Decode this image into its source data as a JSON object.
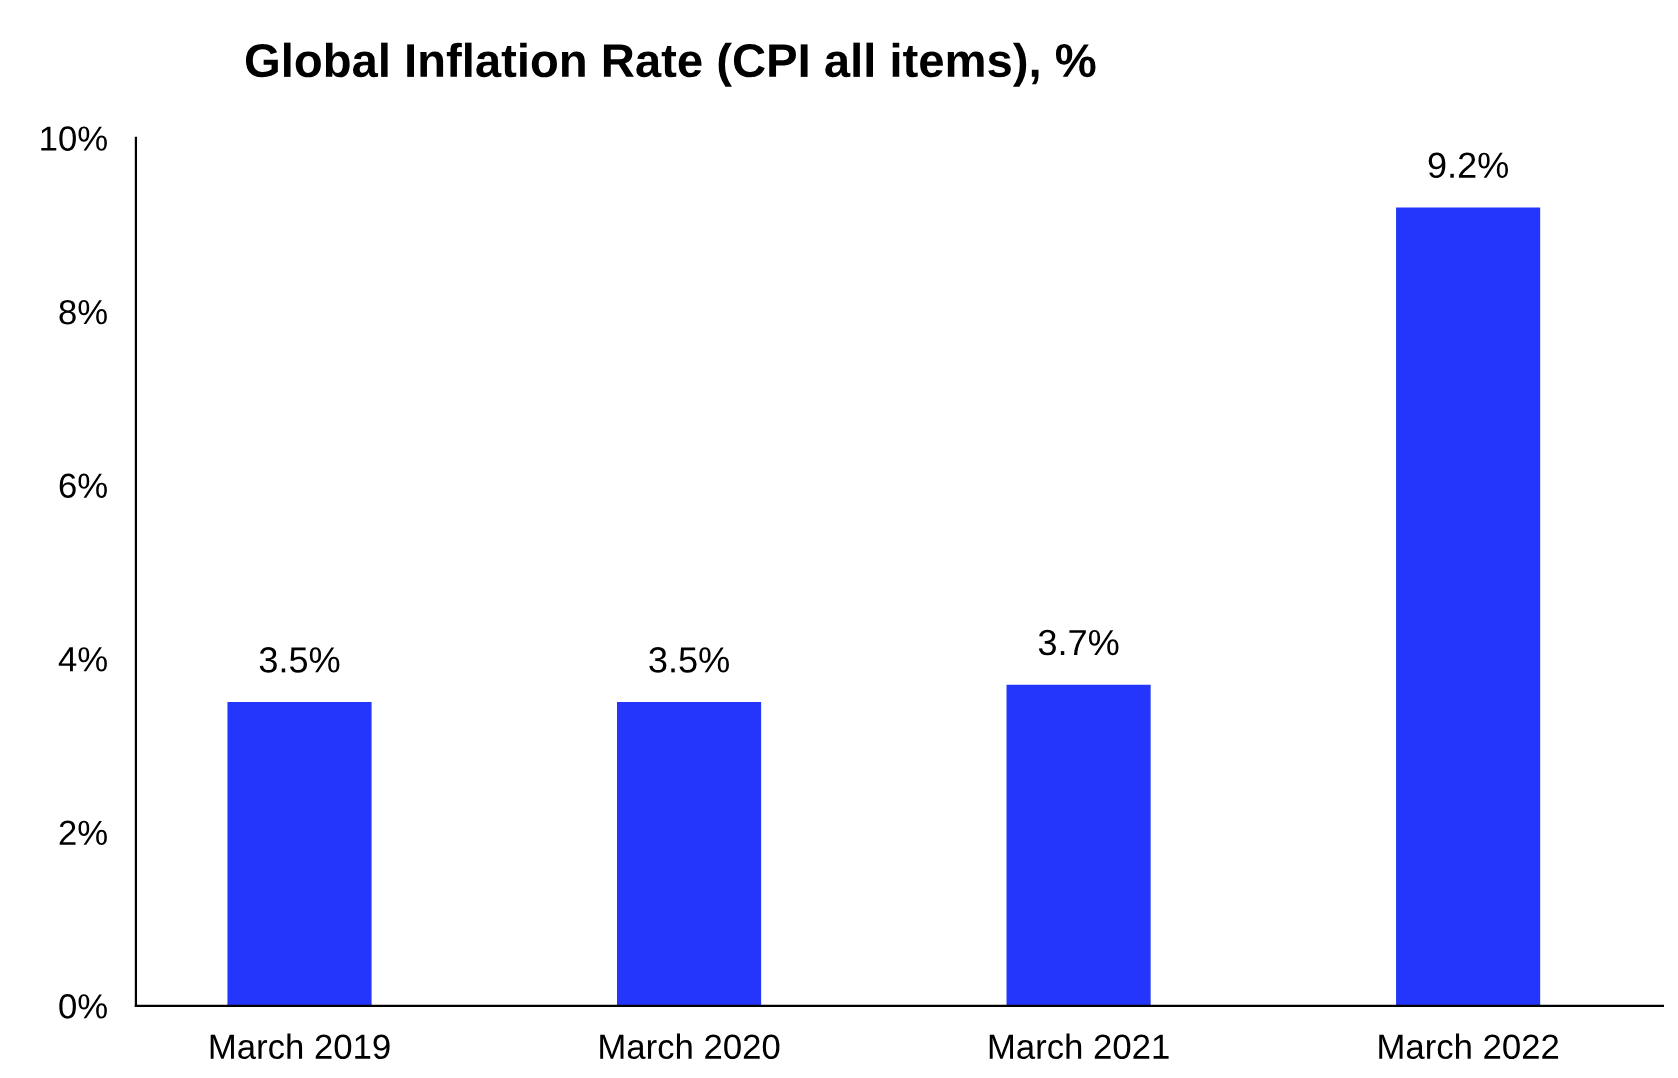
{
  "chart_data": {
    "type": "bar",
    "title": "Global Inflation Rate (CPI all items), %",
    "categories": [
      "March 2019",
      "March 2020",
      "March 2021",
      "March 2022"
    ],
    "values": [
      3.5,
      3.5,
      3.7,
      9.2
    ],
    "value_labels": [
      "3.5%",
      "3.5%",
      "3.7%",
      "9.2%"
    ],
    "color": "#2436fb",
    "ylim": [
      0,
      10
    ],
    "yticks": [
      {
        "value": 0,
        "label": "0%"
      },
      {
        "value": 2,
        "label": "2%"
      },
      {
        "value": 4,
        "label": "4%"
      },
      {
        "value": 6,
        "label": "6%"
      },
      {
        "value": 8,
        "label": "8%"
      },
      {
        "value": 10,
        "label": "10%"
      }
    ],
    "grid": false
  }
}
